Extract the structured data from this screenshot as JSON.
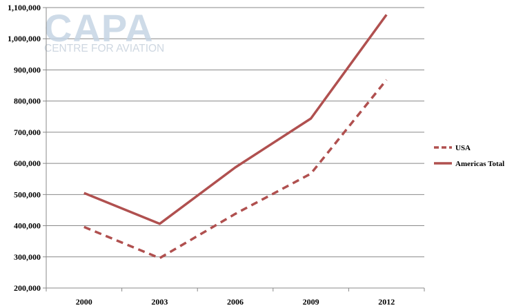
{
  "watermark": {
    "brand": "CAPA",
    "subtitle": "CENTRE FOR AVIATION"
  },
  "chart_data": {
    "type": "line",
    "categories": [
      "2000",
      "2003",
      "2006",
      "2009",
      "2012"
    ],
    "ylim": [
      200000,
      1100000
    ],
    "yticks": [
      200000,
      300000,
      400000,
      500000,
      600000,
      700000,
      800000,
      900000,
      1000000,
      1100000
    ],
    "ytick_labels": [
      "200,000",
      "300,000",
      "400,000",
      "500,000",
      "600,000",
      "700,000",
      "800,000",
      "900,000",
      "1,000,000",
      "1,100,000"
    ],
    "grid": true,
    "legend_position": "right",
    "series": [
      {
        "name": "USA",
        "values": [
          396000,
          296000,
          438000,
          567000,
          868000
        ],
        "color": "#b0504f",
        "style": "dashed"
      },
      {
        "name": "Americas Total",
        "values": [
          505000,
          406000,
          587000,
          744000,
          1077000
        ],
        "color": "#b0504f",
        "style": "solid"
      }
    ]
  }
}
